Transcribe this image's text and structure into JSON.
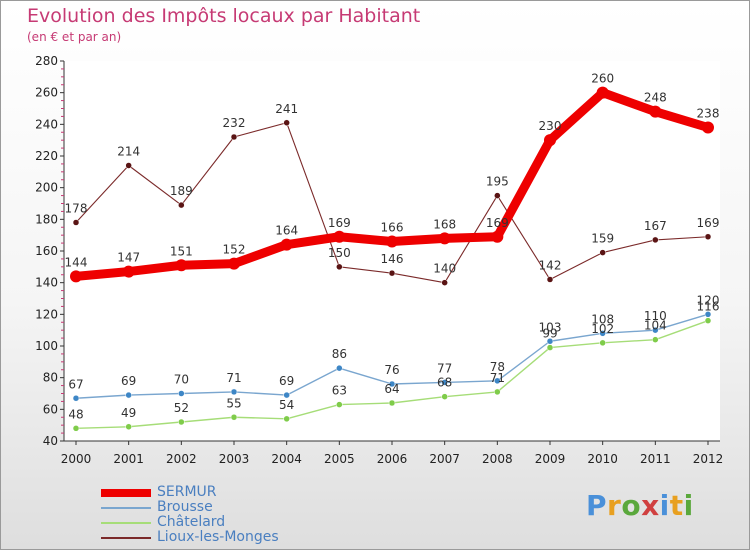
{
  "header": {
    "title": "Evolution des Impôts locaux par Habitant",
    "subtitle": "(en € et par an)"
  },
  "logo": {
    "text": "Proxiti",
    "colors": [
      "#4a90d9",
      "#e8a020",
      "#5aa83c",
      "#d04040",
      "#4a90d9",
      "#e8a020",
      "#5aa83c"
    ]
  },
  "chart_data": {
    "type": "line",
    "x": [
      "2000",
      "2001",
      "2002",
      "2003",
      "2004",
      "2005",
      "2006",
      "2007",
      "2008",
      "2009",
      "2010",
      "2011",
      "2012"
    ],
    "ylim": [
      40,
      280
    ],
    "yticks": [
      40,
      60,
      80,
      100,
      120,
      140,
      160,
      180,
      200,
      220,
      240,
      260,
      280
    ],
    "grid": false,
    "legend_placement": "bottom-left",
    "series": [
      {
        "name": "SERMUR",
        "color": "#ee0000",
        "point_color": "#ee0000",
        "values": [
          144,
          147,
          151,
          152,
          164,
          169,
          166,
          168,
          169,
          230,
          260,
          248,
          238
        ]
      },
      {
        "name": "Brousse",
        "color": "#7aa6cf",
        "point_color": "#3d86c6",
        "values": [
          67,
          69,
          70,
          71,
          69,
          86,
          76,
          77,
          78,
          103,
          108,
          110,
          120
        ]
      },
      {
        "name": "Châtelard",
        "color": "#a6dd78",
        "point_color": "#7fcc4a",
        "values": [
          48,
          49,
          52,
          55,
          54,
          63,
          64,
          68,
          71,
          99,
          102,
          104,
          116
        ]
      },
      {
        "name": "Lioux-les-Monges",
        "color": "#7b2a2a",
        "point_color": "#5a1414",
        "values": [
          178,
          214,
          189,
          232,
          241,
          150,
          146,
          140,
          195,
          142,
          159,
          167,
          169
        ]
      }
    ]
  }
}
